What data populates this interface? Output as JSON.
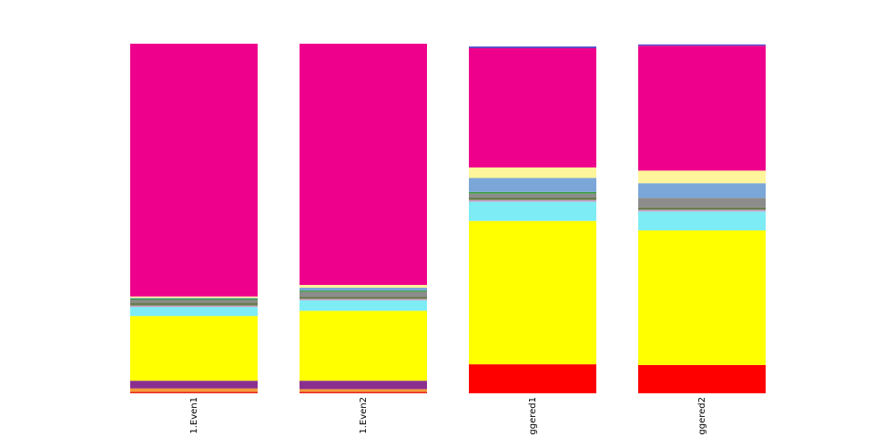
{
  "chart_data": {
    "type": "bar",
    "stacked": true,
    "normalized": true,
    "categories": [
      "1.Even1",
      "1.Even2",
      "ggered1",
      "ggered2"
    ],
    "ylim": [
      0,
      1
    ],
    "grid": false,
    "legend": "none",
    "series": [
      {
        "color": "#e8261c",
        "values": [
          0.004,
          0.004,
          0.0,
          0.0
        ]
      },
      {
        "color": "#ff0000",
        "values": [
          0.0,
          0.0,
          0.083,
          0.081
        ]
      },
      {
        "color": "#f39a3a",
        "values": [
          0.01,
          0.008,
          0.0,
          0.0
        ]
      },
      {
        "color": "#8b2f8f",
        "values": [
          0.022,
          0.024,
          0.0,
          0.0
        ]
      },
      {
        "color": "#ffff00",
        "values": [
          0.185,
          0.2,
          0.41,
          0.385
        ]
      },
      {
        "color": "#7eecf4",
        "values": [
          0.026,
          0.03,
          0.055,
          0.054
        ]
      },
      {
        "color": "#c9a0c6",
        "values": [
          0.004,
          0.004,
          0.005,
          0.005
        ]
      },
      {
        "color": "#6a7d4e",
        "values": [
          0.008,
          0.006,
          0.007,
          0.007
        ]
      },
      {
        "color": "#8c8c8c",
        "values": [
          0.008,
          0.014,
          0.011,
          0.027
        ]
      },
      {
        "color": "#3f9b46",
        "values": [
          0.004,
          0.004,
          0.005,
          0.0
        ]
      },
      {
        "color": "#7ba7d8",
        "values": [
          0.002,
          0.008,
          0.04,
          0.042
        ]
      },
      {
        "color": "#fff59a",
        "values": [
          0.004,
          0.008,
          0.03,
          0.036
        ]
      },
      {
        "color": "#ee008c",
        "values": [
          0.723,
          0.69,
          0.341,
          0.357
        ]
      },
      {
        "color": "#5b49c8",
        "values": [
          0.0,
          0.0,
          0.005,
          0.004
        ]
      }
    ]
  }
}
